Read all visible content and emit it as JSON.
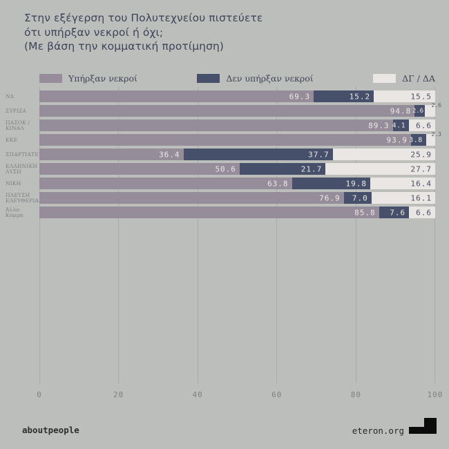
{
  "title": {
    "line1": "Στην εξέγερση του Πολυτεχνείου πιστεύετε",
    "line2": "ότι υπήρξαν νεκροί ή όχι;",
    "line3": "(Με βάση την κομματική προτίμηση)"
  },
  "legend": {
    "items": [
      {
        "label": "Υπήρξαν νεκροί",
        "color": "#968d9b"
      },
      {
        "label": "Δεν υπήρξαν νεκροί",
        "color": "#46506a"
      },
      {
        "label": "ΔΓ / ΔΑ",
        "color": "#e9e6e3"
      }
    ]
  },
  "chart_data": {
    "type": "bar",
    "orientation": "horizontal",
    "stacked": true,
    "unit": "%",
    "xlim": [
      0,
      100
    ],
    "x_ticks": [
      "0",
      "20",
      "40",
      "60",
      "80",
      "100"
    ],
    "grid": true,
    "legend_position": "top",
    "categories": [
      "ΝΔ",
      "ΣΥΡΙΖΑ",
      "ΠΑΣΟΚ / ΚΙΝΑΛ",
      "ΚΚΕ",
      "ΣΠΑΡΤΙΑΤΕΣ",
      "ΕΛΛΗΝΙΚΗ ΛΥΣΗ",
      "ΝΙΚΗ",
      "ΠΛΕΥΣΗ ΕΛΕΥΘΕΡΙΑΣ",
      "Άλλο Κόμμα"
    ],
    "category_label_lines": [
      [
        "ΝΔ"
      ],
      [
        "ΣΥΡΙΖΑ"
      ],
      [
        "ΠΑΣΟΚ /",
        "ΚΙΝΑΛ"
      ],
      [
        "ΚΚΕ"
      ],
      [
        "ΣΠΑΡΤΙΑΤΕΣ"
      ],
      [
        "ΕΛΛΗΝΙΚΗ",
        "ΛΥΣΗ"
      ],
      [
        "ΝΙΚΗ"
      ],
      [
        "ΠΛΕΥΣΗ",
        "ΕΛΕΥΘΕΡΙΑΣ"
      ],
      [
        "Άλλο Κόμμα"
      ]
    ],
    "series": [
      {
        "name": "Υπήρξαν νεκροί",
        "color": "#968d9b",
        "values": [
          69.3,
          94.8,
          89.3,
          93.9,
          36.4,
          50.6,
          63.8,
          76.9,
          85.8
        ]
      },
      {
        "name": "Δεν υπήρξαν νεκροί",
        "color": "#46506a",
        "values": [
          15.2,
          2.6,
          4.1,
          3.8,
          37.7,
          21.7,
          19.8,
          7.0,
          7.6
        ]
      },
      {
        "name": "ΔΓ / ΔΑ",
        "color": "#e9e6e3",
        "values": [
          15.5,
          2.6,
          6.6,
          2.3,
          25.9,
          27.7,
          16.4,
          16.1,
          6.6
        ]
      }
    ]
  },
  "footer": {
    "left": "aboutpeople",
    "right": "eteron.org",
    "logo_icon": "eteron-step-logo"
  },
  "colors": {
    "background": "#bcbebb",
    "bar_yes": "#968d9b",
    "bar_no": "#46506a",
    "bar_dkda": "#e9e6e3",
    "title_text": "#3e4457",
    "axis_text": "#7c7f83",
    "gridline": "#aaaca9",
    "value_light": "#ece9e5",
    "value_dark": "#4b5065",
    "footer_text": "#2e2e2e",
    "logo_black": "#0b0b0b"
  }
}
